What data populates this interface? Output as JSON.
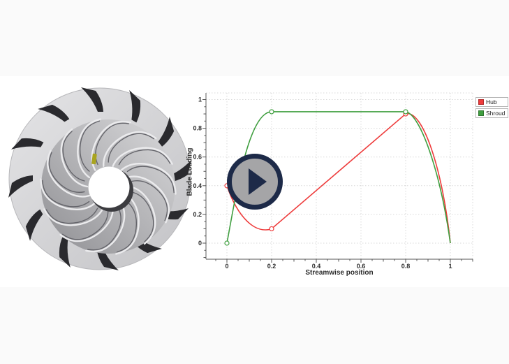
{
  "page": {
    "background_color": "#fafafa",
    "video_band_color": "#ffffff"
  },
  "video": {
    "play_button": {
      "ring_color": "#1d2a48",
      "face_color": "#a5a5a7",
      "icon": "play-icon"
    }
  },
  "impeller": {
    "description": "3D rendered centrifugal impeller wheel with backswept blades",
    "backplate_color": "#d6d6d8",
    "blade_dark_color": "#2a2a2e",
    "bore_color": "#ffffff",
    "highlight_marker_color": "#a9a41f"
  },
  "chart_data": {
    "type": "line",
    "title": "",
    "xlabel": "Streamwise position",
    "ylabel": "Blade Loading",
    "xlim": [
      -0.09,
      1.11
    ],
    "ylim": [
      -0.11,
      1.05
    ],
    "xticks": [
      0,
      0.2,
      0.4,
      0.6,
      0.8,
      1
    ],
    "yticks": [
      0,
      0.2,
      0.4,
      0.6,
      0.8,
      1
    ],
    "grid": "dotted",
    "legend_position": "outside-top-right",
    "series": [
      {
        "name": "Hub",
        "color": "#ee3b3b",
        "markers": [
          [
            0,
            0.4
          ],
          [
            0.2,
            0.1
          ],
          [
            0.8,
            0.9
          ]
        ],
        "path": [
          {
            "type": "M",
            "p": [
              0,
              0.4
            ]
          },
          {
            "type": "C",
            "c1": [
              0.05,
              0.17
            ],
            "c2": [
              0.13,
              0.062
            ],
            "p": [
              0.2,
              0.1
            ]
          },
          {
            "type": "C",
            "c1": [
              0.32,
              0.26
            ],
            "c2": [
              0.68,
              0.74
            ],
            "p": [
              0.8,
              0.9
            ]
          },
          {
            "type": "C",
            "c1": [
              0.875,
              0.935
            ],
            "c2": [
              0.965,
              0.52
            ],
            "p": [
              1,
              0
            ]
          }
        ]
      },
      {
        "name": "Shroud",
        "color": "#3f9e3f",
        "markers": [
          [
            0,
            0
          ],
          [
            0.2,
            0.915
          ],
          [
            0.8,
            0.915
          ]
        ],
        "path": [
          {
            "type": "M",
            "p": [
              0,
              0
            ]
          },
          {
            "type": "C",
            "c1": [
              0.045,
              0.38
            ],
            "c2": [
              0.1,
              0.915
            ],
            "p": [
              0.2,
              0.915
            ]
          },
          {
            "type": "L",
            "p": [
              0.8,
              0.915
            ]
          },
          {
            "type": "C",
            "c1": [
              0.865,
              0.9
            ],
            "c2": [
              0.955,
              0.5
            ],
            "p": [
              1,
              0
            ]
          }
        ]
      }
    ]
  }
}
